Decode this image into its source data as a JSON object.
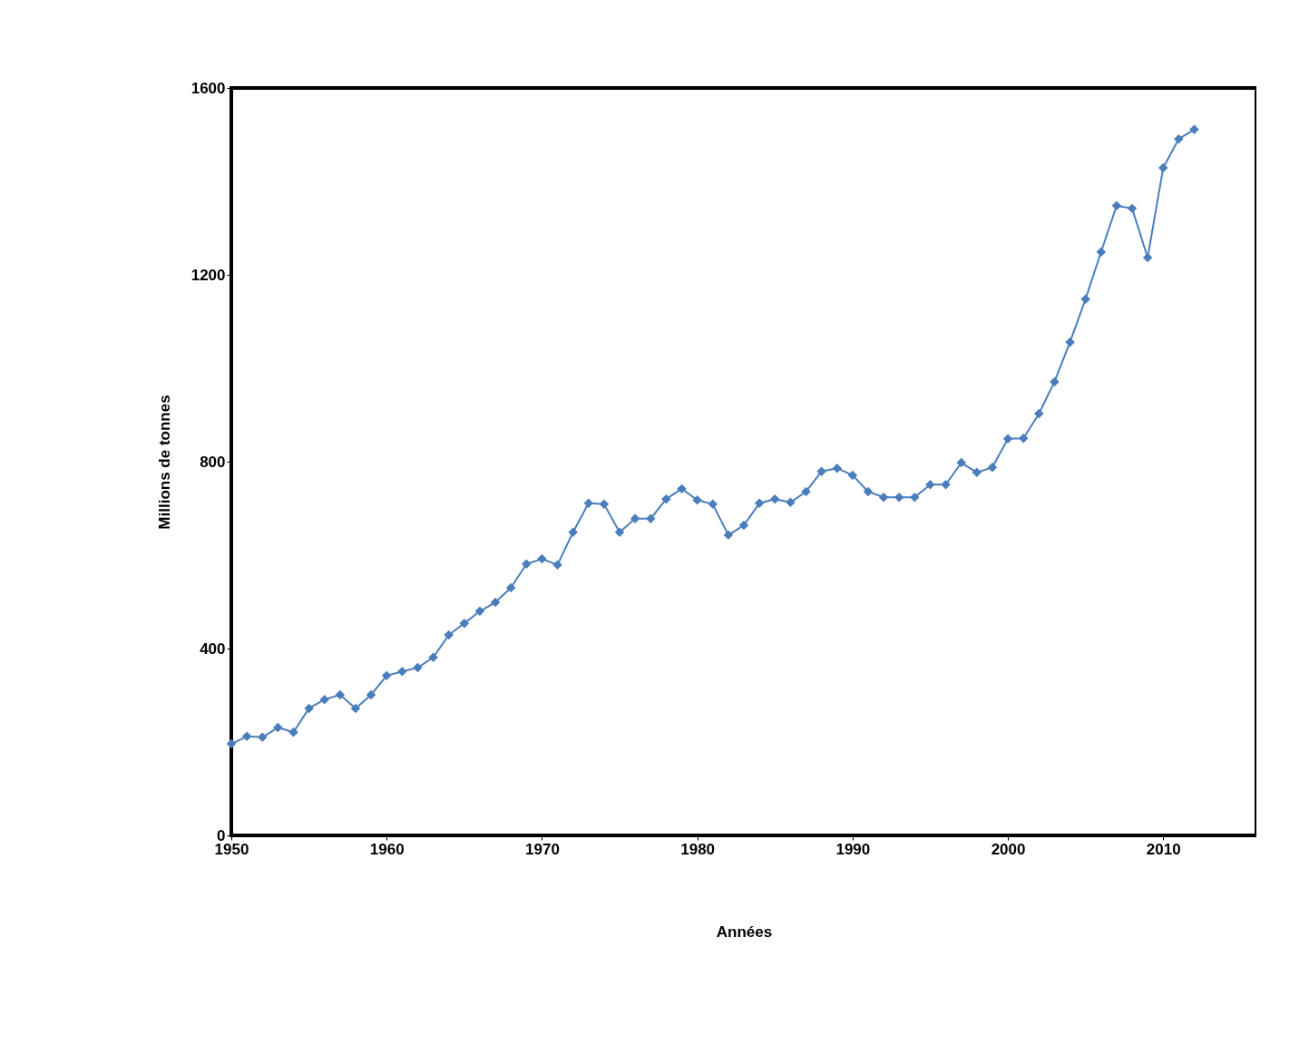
{
  "chart_data": {
    "type": "line",
    "xlabel": "Années",
    "ylabel": "Millions de tonnes",
    "x": [
      1950,
      1951,
      1952,
      1953,
      1954,
      1955,
      1956,
      1957,
      1958,
      1959,
      1960,
      1961,
      1962,
      1963,
      1964,
      1965,
      1966,
      1967,
      1968,
      1969,
      1970,
      1971,
      1972,
      1973,
      1974,
      1975,
      1976,
      1977,
      1978,
      1979,
      1980,
      1981,
      1982,
      1983,
      1984,
      1985,
      1986,
      1987,
      1988,
      1989,
      1990,
      1991,
      1992,
      1993,
      1994,
      1995,
      1996,
      1997,
      1998,
      1999,
      2000,
      2001,
      2002,
      2003,
      2004,
      2005,
      2006,
      2007,
      2008,
      2009,
      2010,
      2011,
      2012
    ],
    "series": [
      {
        "color": "#4a7ebb",
        "values": [
          196,
          212,
          210,
          231,
          221,
          272,
          291,
          301,
          272,
          301,
          342,
          351,
          359,
          381,
          429,
          454,
          480,
          499,
          530,
          581,
          592,
          579,
          649,
          711,
          709,
          649,
          678,
          678,
          720,
          742,
          718,
          709,
          643,
          664,
          711,
          720,
          713,
          736,
          779,
          786,
          771,
          736,
          724,
          724,
          724,
          751,
          751,
          798,
          777,
          788,
          849,
          850,
          903,
          971,
          1056,
          1148,
          1249,
          1348,
          1342,
          1237,
          1429,
          1491,
          1511
        ]
      }
    ],
    "xlim": [
      1950,
      2016
    ],
    "xticks": [
      1950,
      1960,
      1970,
      1980,
      1990,
      2000,
      2010
    ],
    "ylim": [
      0,
      1600
    ],
    "yticks": [
      0,
      400,
      800,
      1200,
      1600
    ],
    "grid": false,
    "legend": false,
    "marker": "diamond",
    "line_style": "solid"
  }
}
